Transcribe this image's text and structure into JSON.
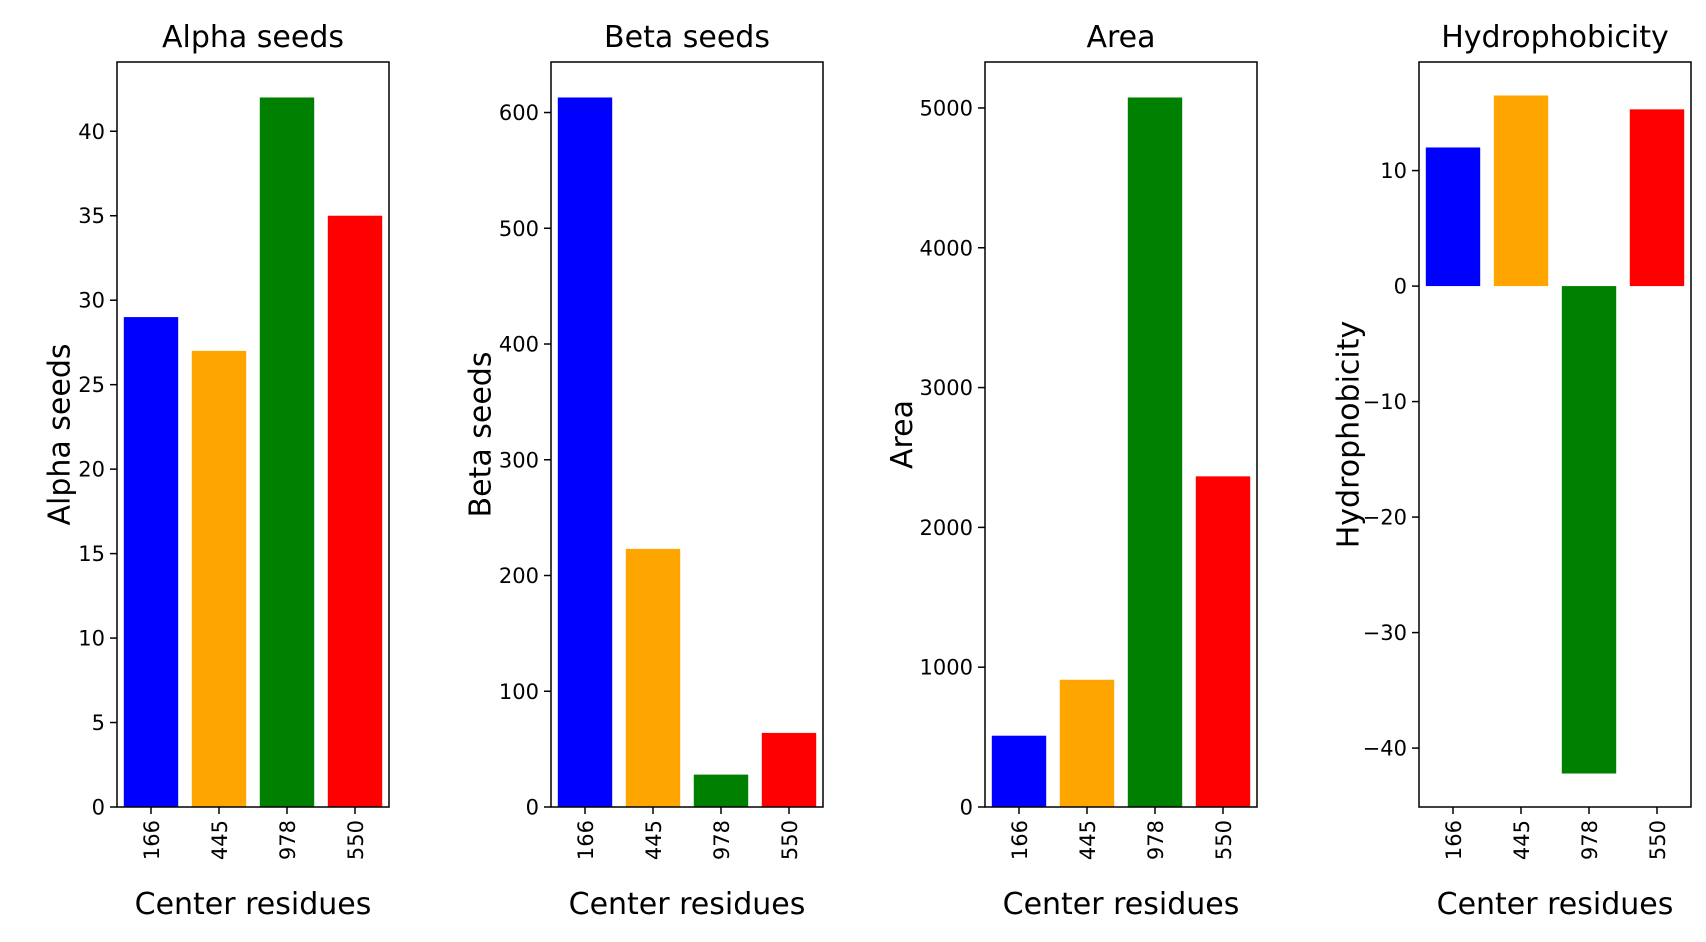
{
  "chart_data": [
    {
      "type": "bar",
      "title": "Alpha seeds",
      "xlabel": "Center residues",
      "ylabel": "Alpha seeds",
      "categories": [
        "166",
        "445",
        "978",
        "550"
      ],
      "values": [
        29,
        27,
        42,
        35
      ],
      "colors": [
        "#0000ff",
        "#ffa500",
        "#008000",
        "#ff0000"
      ],
      "ylim": [
        0,
        44.1
      ],
      "yticks": [
        0,
        5,
        10,
        15,
        20,
        25,
        30,
        35,
        40
      ],
      "ytick_labels": [
        "0",
        "5",
        "10",
        "15",
        "20",
        "25",
        "30",
        "35",
        "40"
      ]
    },
    {
      "type": "bar",
      "title": "Beta seeds",
      "xlabel": "Center residues",
      "ylabel": "Beta seeds",
      "categories": [
        "166",
        "445",
        "978",
        "550"
      ],
      "values": [
        613,
        223,
        28,
        64
      ],
      "colors": [
        "#0000ff",
        "#ffa500",
        "#008000",
        "#ff0000"
      ],
      "ylim": [
        0,
        643.65
      ],
      "yticks": [
        0,
        100,
        200,
        300,
        400,
        500,
        600
      ],
      "ytick_labels": [
        "0",
        "100",
        "200",
        "300",
        "400",
        "500",
        "600"
      ]
    },
    {
      "type": "bar",
      "title": "Area",
      "xlabel": "Center residues",
      "ylabel": "Area",
      "categories": [
        "166",
        "445",
        "978",
        "550"
      ],
      "values": [
        510,
        910,
        5075,
        2365
      ],
      "colors": [
        "#0000ff",
        "#ffa500",
        "#008000",
        "#ff0000"
      ],
      "ylim": [
        0,
        5328.75
      ],
      "yticks": [
        0,
        1000,
        2000,
        3000,
        4000,
        5000
      ],
      "ytick_labels": [
        "0",
        "1000",
        "2000",
        "3000",
        "4000",
        "5000"
      ]
    },
    {
      "type": "bar",
      "title": "Hydrophobicity",
      "xlabel": "Center residues",
      "ylabel": "Hydrophobicity",
      "categories": [
        "166",
        "445",
        "978",
        "550"
      ],
      "values": [
        12,
        16.5,
        -42.2,
        15.3
      ],
      "colors": [
        "#0000ff",
        "#ffa500",
        "#008000",
        "#ff0000"
      ],
      "ylim": [
        -45.1,
        19.4
      ],
      "yticks": [
        -40,
        -30,
        -20,
        -10,
        0,
        10
      ],
      "ytick_labels": [
        "−40",
        "−30",
        "−20",
        "−10",
        "0",
        "10"
      ]
    }
  ]
}
